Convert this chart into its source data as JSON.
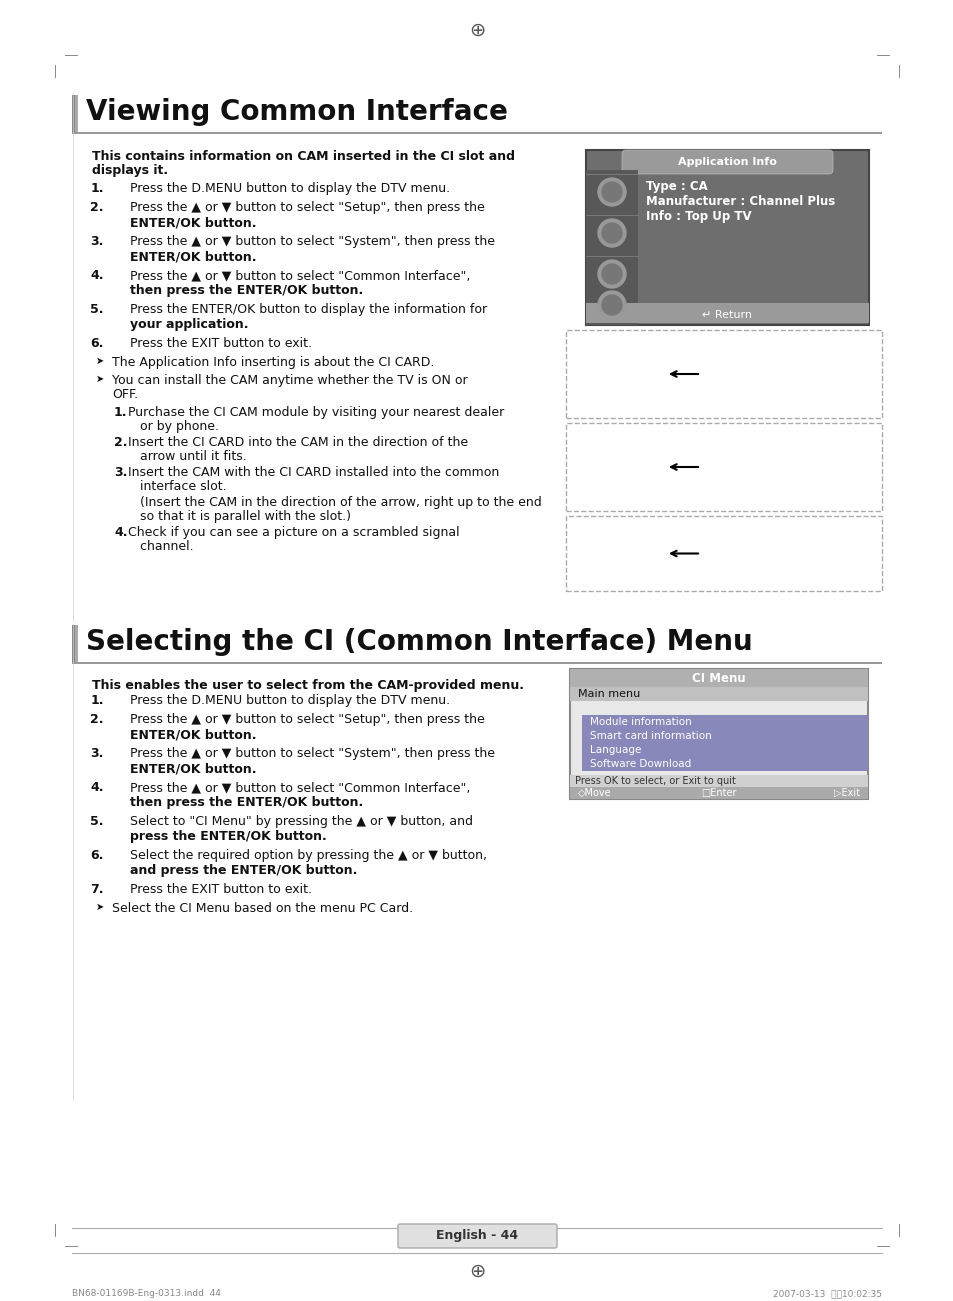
{
  "page_bg": "#ffffff",
  "section1_title": "Viewing Common Interface",
  "section2_title": "Selecting the CI (Common Interface) Menu",
  "section1_bold": "This contains information on CAM inserted in the CI slot and displays it.",
  "section2_bold": "This enables the user to select from the CAM-provided menu.",
  "app_info_title": "Application Info",
  "app_info_lines": [
    "Type : CA",
    "Manufacturer : Channel Plus",
    "Info : Top Up TV"
  ],
  "app_info_return": "↵ Return",
  "ci_menu_title": "CI Menu",
  "ci_menu_items": [
    "Main menu",
    "Module information",
    "Smart card information",
    "Language",
    "Software Download"
  ],
  "ci_menu_press": "Press OK to select, or Exit to quit",
  "ci_menu_footer_move": "◇Move",
  "ci_menu_footer_enter": "□Enter",
  "ci_menu_footer_exit": "▷Exit",
  "footer_text": "English - 44",
  "footer_bottom_left": "BN68-01169B-Eng-0313.indd  44",
  "footer_bottom_right": "2007-03-13  午前10:02:35"
}
